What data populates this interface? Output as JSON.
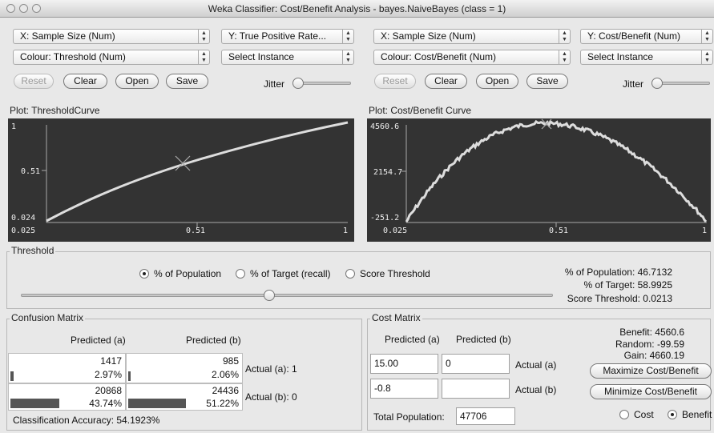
{
  "window": {
    "title": "Weka Classifier: Cost/Benefit Analysis - bayes.NaiveBayes  (class = 1)"
  },
  "left": {
    "x_axis": "X: Sample Size (Num)",
    "y_axis": "Y: True Positive Rate...",
    "colour": "Colour: Threshold (Num)",
    "select": "Select Instance",
    "buttons": {
      "reset": "Reset",
      "clear": "Clear",
      "open": "Open",
      "save": "Save"
    },
    "jitter": "Jitter",
    "plot_title": "Plot: ThresholdCurve",
    "ticks": {
      "y_top": "1",
      "y_mid": "0.51",
      "y_bot": "0.024",
      "x_left": "0.025",
      "x_mid": "0.51",
      "x_right": "1"
    }
  },
  "right": {
    "x_axis": "X: Sample Size (Num)",
    "y_axis": "Y: Cost/Benefit (Num)",
    "colour": "Colour: Cost/Benefit (Num)",
    "select": "Select Instance",
    "buttons": {
      "reset": "Reset",
      "clear": "Clear",
      "open": "Open",
      "save": "Save"
    },
    "jitter": "Jitter",
    "plot_title": "Plot: Cost/Benefit Curve",
    "ticks": {
      "y_top": "4560.6",
      "y_mid": "2154.7",
      "y_bot": "-251.2",
      "x_left": "0.025",
      "x_mid": "0.51",
      "x_right": "1"
    }
  },
  "threshold": {
    "title": "Threshold",
    "options": [
      "% of Population",
      "% of Target (recall)",
      "Score Threshold"
    ],
    "selected": "% of Population",
    "slider_value": 0.467,
    "stats": {
      "population": "% of Population: 46.7132",
      "target": "% of Target: 58.9925",
      "score": "Score Threshold: 0.0213"
    }
  },
  "confusion": {
    "title": "Confusion Matrix",
    "col_a": "Predicted (a)",
    "col_b": "Predicted (b)",
    "rows": [
      {
        "a_count": "1417",
        "a_pct": "2.97%",
        "b_count": "985",
        "b_pct": "2.06%",
        "label": "Actual (a): 1",
        "a_frac": 0.0297,
        "b_frac": 0.0206
      },
      {
        "a_count": "20868",
        "a_pct": "43.74%",
        "b_count": "24436",
        "b_pct": "51.22%",
        "label": "Actual (b): 0",
        "a_frac": 0.4374,
        "b_frac": 0.5122
      }
    ],
    "accuracy": "Classification Accuracy:  54.1923%"
  },
  "cost": {
    "title": "Cost Matrix",
    "col_a": "Predicted (a)",
    "col_b": "Predicted (b)",
    "r1": {
      "a": "15.00",
      "b": "0",
      "label": "Actual (a)"
    },
    "r2": {
      "a": "-0.8",
      "b": "",
      "label": "Actual (b)"
    },
    "total_label": "Total Population:",
    "total_value": "47706",
    "benefit": "Benefit: 4560.6",
    "random": "Random: -99.59",
    "gain": "Gain: 4660.19",
    "maximize": "Maximize Cost/Benefit",
    "minimize": "Minimize Cost/Benefit",
    "radio_cost": "Cost",
    "radio_benefit": "Benefit",
    "radio_selected": "Benefit"
  }
}
